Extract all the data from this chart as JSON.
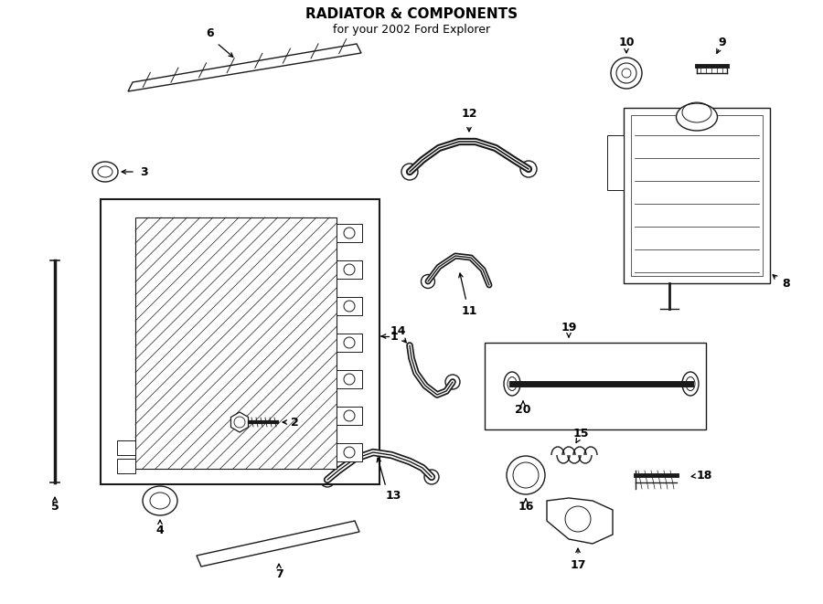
{
  "title": "RADIATOR & COMPONENTS",
  "subtitle": "for your 2002 Ford Explorer",
  "bg_color": "#ffffff",
  "lc": "#1a1a1a",
  "fig_width": 9.0,
  "fig_height": 6.61,
  "dpi": 100
}
